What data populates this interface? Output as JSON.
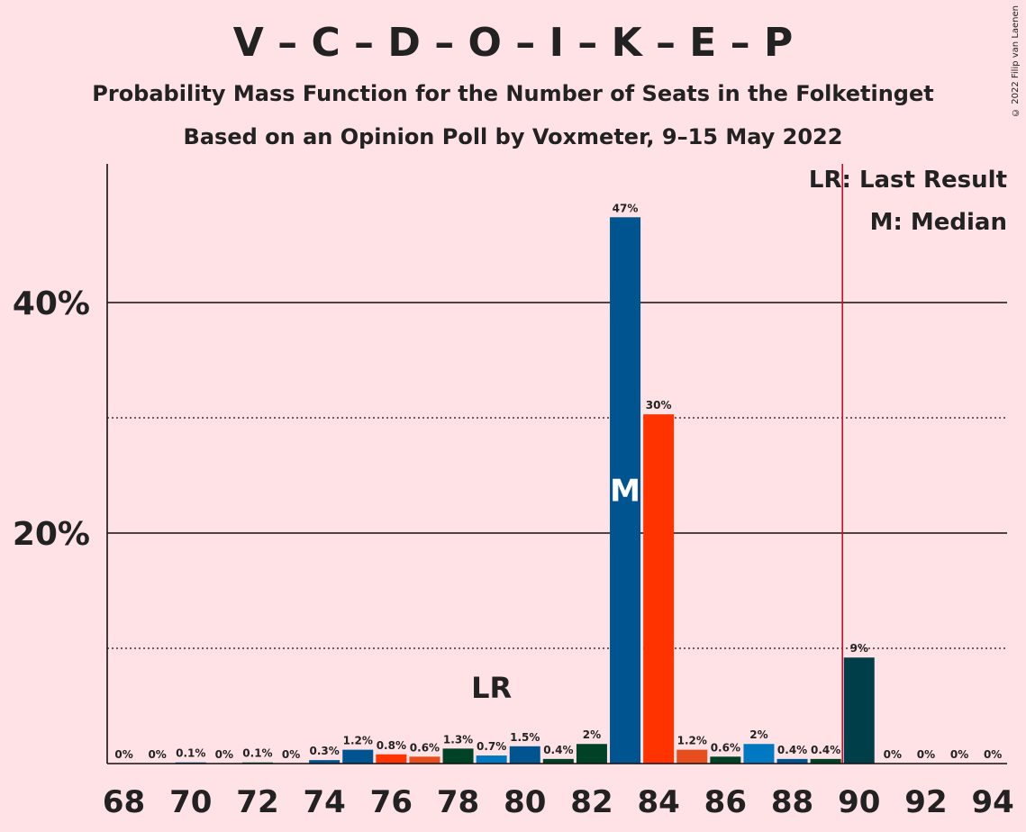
{
  "title": "V – C – D – O – I – K – E – P",
  "subtitle": "Probability Mass Function for the Number of Seats in the Folketinget",
  "subtitle2": "Based on an Opinion Poll by Voxmeter, 9–15 May 2022",
  "copyright": "© 2022 Filip van Laenen",
  "legend": {
    "last_result": "LR: Last Result",
    "median": "M: Median"
  },
  "chart_data": {
    "type": "bar",
    "x": [
      68,
      69,
      70,
      71,
      72,
      73,
      74,
      75,
      76,
      77,
      78,
      79,
      80,
      81,
      82,
      83,
      84,
      85,
      86,
      87,
      88,
      89,
      90,
      91,
      92,
      93,
      94
    ],
    "values": [
      0,
      0,
      0.1,
      0,
      0.1,
      0,
      0.3,
      1.2,
      0.8,
      0.6,
      1.3,
      0.7,
      1.5,
      0.4,
      1.7,
      47.4,
      30.3,
      1.2,
      0.6,
      1.7,
      0.4,
      0.4,
      9.2,
      0,
      0,
      0,
      0
    ],
    "labels": [
      "0%",
      "0%",
      "0.1%",
      "0%",
      "0.1%",
      "0%",
      "0.3%",
      "1.2%",
      "0.8%",
      "0.6%",
      "1.3%",
      "0.7%",
      "1.5%",
      "0.4%",
      "2%",
      "47%",
      "30%",
      "1.2%",
      "0.6%",
      "2%",
      "0.4%",
      "0.4%",
      "9%",
      "0%",
      "0%",
      "0%",
      "0%"
    ],
    "colors": [
      "#FF3300",
      "#006633",
      "#00548F",
      "#FF3300",
      "#006633",
      "#00548F",
      "#00548F",
      "#00548F",
      "#FF3300",
      "#E84D1E",
      "#004225",
      "#0079C2",
      "#00548F",
      "#004225",
      "#004225",
      "#00548F",
      "#FF3300",
      "#E84D1E",
      "#004225",
      "#0079C2",
      "#00548F",
      "#004225",
      "#003F4A",
      "#0079C2",
      "#00548F",
      "#004225",
      "#003F4A"
    ],
    "x_tick_labels": [
      "68",
      "70",
      "72",
      "74",
      "76",
      "78",
      "80",
      "82",
      "84",
      "86",
      "88",
      "90",
      "92",
      "94"
    ],
    "y_tick_labels": [
      "20%",
      "40%"
    ],
    "ylim": [
      0,
      52
    ],
    "grid_solid": [
      20,
      40
    ],
    "grid_dotted": [
      10,
      30
    ],
    "last_result_seat": 79,
    "last_result_label": "LR",
    "majority_line_seat": 89.5,
    "median_seat": 83,
    "median_label": "M"
  }
}
